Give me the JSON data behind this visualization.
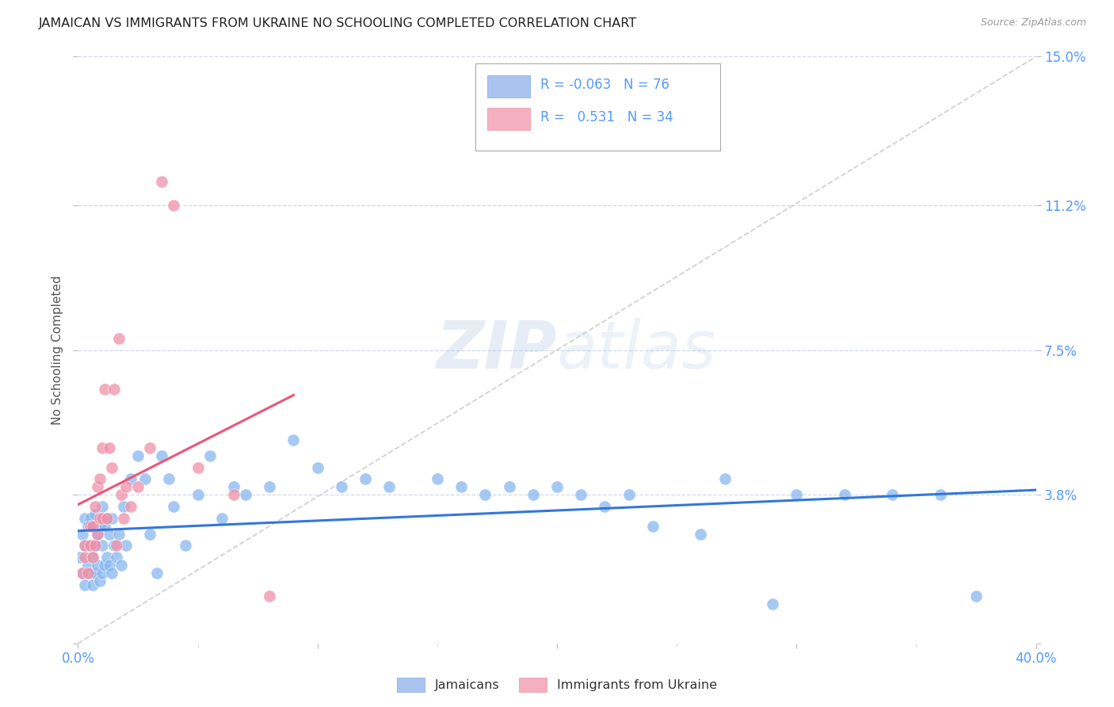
{
  "title": "JAMAICAN VS IMMIGRANTS FROM UKRAINE NO SCHOOLING COMPLETED CORRELATION CHART",
  "source": "Source: ZipAtlas.com",
  "ylabel": "No Schooling Completed",
  "xlim": [
    0.0,
    0.4
  ],
  "ylim": [
    0.0,
    0.15
  ],
  "yticks": [
    0.0,
    0.038,
    0.075,
    0.112,
    0.15
  ],
  "ytick_labels": [
    "",
    "3.8%",
    "7.5%",
    "11.2%",
    "15.0%"
  ],
  "xticks": [
    0.0,
    0.1,
    0.2,
    0.3,
    0.4
  ],
  "xtick_labels": [
    "0.0%",
    "",
    "",
    "",
    "40.0%"
  ],
  "background_color": "#ffffff",
  "grid_color": "#d0d8e8",
  "title_color": "#222222",
  "axis_color": "#5599ff",
  "watermark": "ZIPatlas",
  "legend_jamaican_r": "-0.063",
  "legend_jamaican_n": "76",
  "legend_ukraine_r": "0.531",
  "legend_ukraine_n": "34",
  "color_jamaican_patch": "#aac4f0",
  "color_ukraine_patch": "#f5b0c0",
  "jamaican_color": "#88b8f0",
  "ukraine_color": "#f090a8",
  "jamaican_line_color": "#3377dd",
  "ukraine_line_color": "#ee5577",
  "diagonal_line_color": "#cccccc",
  "jamaican_points_x": [
    0.001,
    0.002,
    0.002,
    0.003,
    0.003,
    0.003,
    0.004,
    0.004,
    0.005,
    0.005,
    0.005,
    0.006,
    0.006,
    0.006,
    0.007,
    0.007,
    0.007,
    0.008,
    0.008,
    0.009,
    0.009,
    0.01,
    0.01,
    0.01,
    0.011,
    0.011,
    0.012,
    0.012,
    0.013,
    0.013,
    0.014,
    0.014,
    0.015,
    0.016,
    0.017,
    0.018,
    0.019,
    0.02,
    0.022,
    0.025,
    0.028,
    0.03,
    0.033,
    0.035,
    0.038,
    0.04,
    0.045,
    0.05,
    0.055,
    0.06,
    0.065,
    0.07,
    0.08,
    0.09,
    0.1,
    0.11,
    0.12,
    0.13,
    0.15,
    0.16,
    0.17,
    0.18,
    0.19,
    0.2,
    0.21,
    0.22,
    0.23,
    0.24,
    0.26,
    0.27,
    0.29,
    0.3,
    0.32,
    0.34,
    0.36,
    0.375
  ],
  "jamaican_points_y": [
    0.022,
    0.018,
    0.028,
    0.015,
    0.025,
    0.032,
    0.02,
    0.03,
    0.018,
    0.025,
    0.032,
    0.015,
    0.022,
    0.03,
    0.018,
    0.025,
    0.033,
    0.02,
    0.028,
    0.016,
    0.03,
    0.018,
    0.025,
    0.035,
    0.02,
    0.03,
    0.022,
    0.032,
    0.02,
    0.028,
    0.018,
    0.032,
    0.025,
    0.022,
    0.028,
    0.02,
    0.035,
    0.025,
    0.042,
    0.048,
    0.042,
    0.028,
    0.018,
    0.048,
    0.042,
    0.035,
    0.025,
    0.038,
    0.048,
    0.032,
    0.04,
    0.038,
    0.04,
    0.052,
    0.045,
    0.04,
    0.042,
    0.04,
    0.042,
    0.04,
    0.038,
    0.04,
    0.038,
    0.04,
    0.038,
    0.035,
    0.038,
    0.03,
    0.028,
    0.042,
    0.01,
    0.038,
    0.038,
    0.038,
    0.038,
    0.012
  ],
  "ukraine_points_x": [
    0.002,
    0.003,
    0.003,
    0.004,
    0.005,
    0.005,
    0.006,
    0.006,
    0.007,
    0.007,
    0.008,
    0.008,
    0.009,
    0.009,
    0.01,
    0.01,
    0.011,
    0.012,
    0.013,
    0.014,
    0.015,
    0.016,
    0.017,
    0.018,
    0.019,
    0.02,
    0.022,
    0.025,
    0.03,
    0.035,
    0.04,
    0.05,
    0.065,
    0.08
  ],
  "ukraine_points_y": [
    0.018,
    0.022,
    0.025,
    0.018,
    0.025,
    0.03,
    0.022,
    0.03,
    0.025,
    0.035,
    0.028,
    0.04,
    0.032,
    0.042,
    0.032,
    0.05,
    0.065,
    0.032,
    0.05,
    0.045,
    0.065,
    0.025,
    0.078,
    0.038,
    0.032,
    0.04,
    0.035,
    0.04,
    0.05,
    0.118,
    0.112,
    0.045,
    0.038,
    0.012
  ]
}
